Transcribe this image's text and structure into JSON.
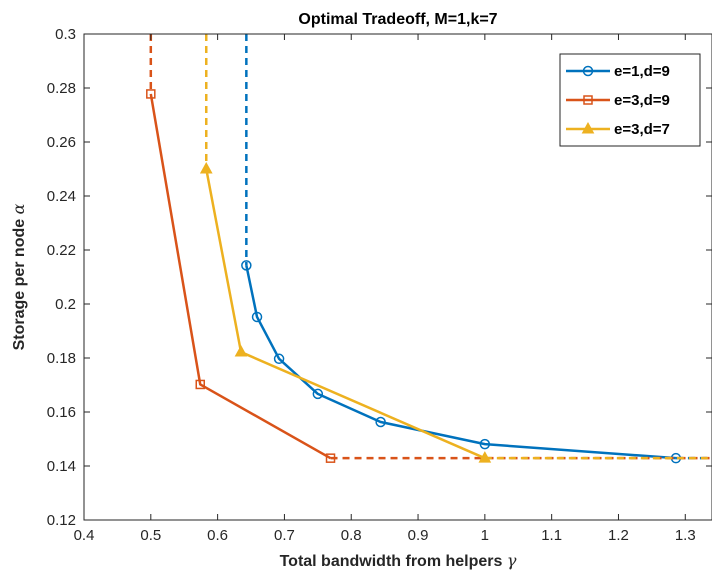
{
  "chart_data": {
    "type": "line",
    "title": "Optimal Tradeoff, M=1,k=7",
    "xlabel": "Total bandwidth from helpers",
    "xlabel_symbol": "γ",
    "ylabel": "Storage per node",
    "ylabel_symbol": "α",
    "xlim": [
      0.4,
      1.34
    ],
    "ylim": [
      0.12,
      0.3
    ],
    "xticks": [
      "0.4",
      "0.5",
      "0.6",
      "0.7",
      "0.8",
      "0.9",
      "1",
      "1.1",
      "1.2",
      "1.3"
    ],
    "yticks": [
      "0.12",
      "0.14",
      "0.16",
      "0.18",
      "0.2",
      "0.22",
      "0.24",
      "0.26",
      "0.28",
      "0.3"
    ],
    "grid": false,
    "legend_position": "top-right",
    "series": [
      {
        "name": "e=1,d=9",
        "color": "#0072BD",
        "marker": "circle",
        "x": [
          0.643,
          0.659,
          0.692,
          0.75,
          0.844,
          1.0,
          1.286
        ],
        "y": [
          0.2143,
          0.1952,
          0.1797,
          0.1667,
          0.1563,
          0.1481,
          0.1429
        ],
        "dashed_vertical_x": 0.643,
        "dashed_horizontal_from_x": 1.286
      },
      {
        "name": "e=3,d=9",
        "color": "#D95319",
        "marker": "square",
        "x": [
          0.5,
          0.574,
          0.769
        ],
        "y": [
          0.2778,
          0.1702,
          0.1429
        ],
        "dashed_vertical_x": 0.5,
        "dashed_horizontal_from_x": 0.769
      },
      {
        "name": "e=3,d=7",
        "color": "#EDB120",
        "marker": "triangle",
        "x": [
          0.583,
          0.635,
          1.0
        ],
        "y": [
          0.25,
          0.1822,
          0.1429
        ],
        "dashed_vertical_x": 0.583,
        "dashed_horizontal_from_x": 1.0
      }
    ]
  }
}
